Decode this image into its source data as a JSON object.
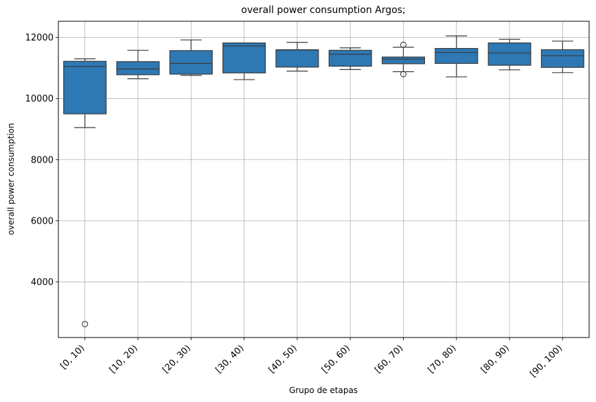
{
  "chart_data": {
    "type": "box",
    "title": "overall power consumption Argos;",
    "xlabel": "Grupo de etapas",
    "ylabel": "overall power consumption",
    "ylim": [
      2180,
      12530
    ],
    "yticks": [
      4000,
      6000,
      8000,
      10000,
      12000
    ],
    "grid": true,
    "box_color": "#2e78b4",
    "categories": [
      "[0, 10)",
      "[10, 20)",
      "[20, 30)",
      "[30, 40)",
      "[40, 50)",
      "[50, 60)",
      "[60, 70)",
      "[70, 80)",
      "[80, 90)",
      "[90, 100)"
    ],
    "boxes": [
      {
        "whislo": 9050,
        "q1": 9500,
        "med": 11050,
        "q3": 11220,
        "whishi": 11300,
        "fliers": [
          2620
        ]
      },
      {
        "whislo": 10650,
        "q1": 10780,
        "med": 10970,
        "q3": 11210,
        "whishi": 11580,
        "fliers": []
      },
      {
        "whislo": 10760,
        "q1": 10800,
        "med": 11150,
        "q3": 11570,
        "whishi": 11920,
        "fliers": []
      },
      {
        "whislo": 10620,
        "q1": 10840,
        "med": 11720,
        "q3": 11820,
        "whishi": 11820,
        "fliers": []
      },
      {
        "whislo": 10900,
        "q1": 11030,
        "med": 11590,
        "q3": 11600,
        "whishi": 11840,
        "fliers": []
      },
      {
        "whislo": 10950,
        "q1": 11060,
        "med": 11450,
        "q3": 11580,
        "whishi": 11660,
        "fliers": []
      },
      {
        "whislo": 10880,
        "q1": 11140,
        "med": 11290,
        "q3": 11360,
        "whishi": 11680,
        "fliers": [
          11760,
          10800
        ]
      },
      {
        "whislo": 10710,
        "q1": 11150,
        "med": 11510,
        "q3": 11640,
        "whishi": 12050,
        "fliers": []
      },
      {
        "whislo": 10940,
        "q1": 11090,
        "med": 11490,
        "q3": 11820,
        "whishi": 11940,
        "fliers": []
      },
      {
        "whislo": 10850,
        "q1": 11020,
        "med": 11400,
        "q3": 11600,
        "whishi": 11880,
        "fliers": []
      }
    ]
  }
}
